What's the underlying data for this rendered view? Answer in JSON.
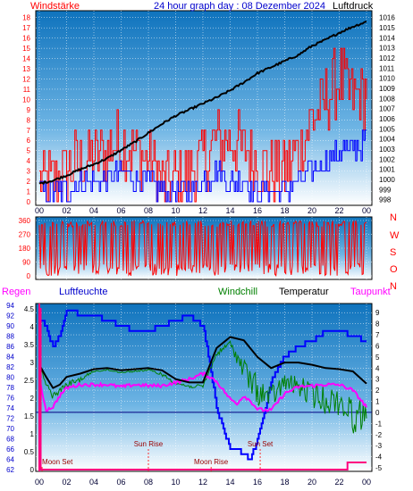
{
  "chart_data": [
    {
      "type": "line",
      "title": "24 hour graph day : 08 Dezember 2024",
      "left_label": "Windstärke",
      "right_label": "Luftdruck",
      "x_ticks": [
        "00",
        "02",
        "04",
        "06",
        "08",
        "10",
        "12",
        "14",
        "16",
        "18",
        "20",
        "22",
        "00"
      ],
      "y_left_ticks": [
        "0",
        "1",
        "2",
        "3",
        "4",
        "5",
        "6",
        "7",
        "8",
        "9",
        "10",
        "11",
        "12",
        "13",
        "14",
        "15",
        "16",
        "17",
        "18"
      ],
      "y_right_ticks": [
        "998",
        "999",
        "1000",
        "1001",
        "1002",
        "1003",
        "1004",
        "1005",
        "1006",
        "1007",
        "1008",
        "1009",
        "1010",
        "1011",
        "1012",
        "1013",
        "1014",
        "1015",
        "1016"
      ],
      "ylim_left": [
        0,
        18.5
      ],
      "ylim_right": [
        997.8,
        1016.5
      ],
      "series": [
        {
          "name": "Luftdruck",
          "color": "#000000",
          "axis": "right",
          "x": [
            0,
            1,
            2,
            3,
            4,
            5,
            6,
            7,
            8,
            9,
            10,
            11,
            12,
            13,
            14,
            15,
            16,
            17,
            18,
            19,
            20,
            21,
            22,
            23,
            24
          ],
          "values": [
            999.6,
            999.9,
            1000.4,
            1001.0,
            1001.5,
            1002.1,
            1002.9,
            1003.7,
            1004.6,
            1005.5,
            1006.3,
            1006.9,
            1007.5,
            1008.1,
            1008.8,
            1009.6,
            1010.5,
            1011.1,
            1011.7,
            1012.3,
            1013.2,
            1013.8,
            1014.5,
            1015.1,
            1015.6
          ]
        },
        {
          "name": "Windstärke Böen",
          "color": "#ff0000",
          "axis": "left",
          "x": [
            0,
            1,
            2,
            3,
            4,
            5,
            6,
            7,
            8,
            9,
            10,
            11,
            12,
            13,
            14,
            15,
            16,
            17,
            18,
            19,
            20,
            21,
            22,
            23,
            24
          ],
          "values": [
            2,
            2,
            3,
            4,
            4,
            5,
            6,
            5,
            4,
            2,
            2,
            3,
            4,
            6,
            6,
            5,
            4,
            3,
            3,
            5,
            8,
            10,
            12,
            10,
            11
          ]
        },
        {
          "name": "Windstärke Mittel",
          "color": "#0000ff",
          "axis": "left",
          "x": [
            0,
            1,
            2,
            3,
            4,
            5,
            6,
            7,
            8,
            9,
            10,
            11,
            12,
            13,
            14,
            15,
            16,
            17,
            18,
            19,
            20,
            21,
            22,
            23,
            24
          ],
          "values": [
            1,
            1,
            1,
            2,
            2,
            2,
            3,
            2,
            2,
            1,
            1,
            1,
            2,
            3,
            2,
            2,
            1,
            1,
            1,
            2,
            3,
            4,
            5,
            5,
            6
          ]
        }
      ]
    },
    {
      "type": "scatter",
      "left_ticks": [
        "0",
        "90",
        "180",
        "270",
        "360"
      ],
      "right_labels": [
        "N",
        "W",
        "S",
        "O",
        "N"
      ],
      "ylim": [
        0,
        360
      ],
      "series": [
        {
          "name": "Windrichtung",
          "color": "#ff0000"
        }
      ]
    },
    {
      "type": "line",
      "labels": {
        "regen": "Regen",
        "luftfeuchte": "Luftfeuchte",
        "windchill": "Windchill",
        "temperatur": "Temperatur",
        "taupunkt": "Taupunkt"
      },
      "y_hum_ticks": [
        "62",
        "64",
        "66",
        "68",
        "70",
        "72",
        "74",
        "76",
        "78",
        "80",
        "82",
        "84",
        "86",
        "88",
        "90",
        "92",
        "94"
      ],
      "y_rain_ticks": [
        "0",
        "0.5",
        "1",
        "1.5",
        "2",
        "2.5",
        "3",
        "3.5",
        "4",
        "4.5"
      ],
      "y_temp_ticks": [
        "-5",
        "-4",
        "-3",
        "-2",
        "-1",
        "0",
        "1",
        "2",
        "3",
        "4",
        "5",
        "6",
        "7",
        "8",
        "9"
      ],
      "ylim_temp": [
        -5,
        9.5
      ],
      "x_ticks": [
        "00",
        "02",
        "04",
        "06",
        "08",
        "10",
        "12",
        "14",
        "16",
        "18",
        "20",
        "22",
        "00"
      ],
      "annotations": [
        {
          "text": "Moon Set",
          "hour": 0.2
        },
        {
          "text": "Sun Rise",
          "hour": 8.0
        },
        {
          "text": "Moon Rise",
          "hour": 12.6
        },
        {
          "text": "Sun Set",
          "hour": 16.2
        }
      ],
      "reference_line": {
        "temp": 0
      },
      "series": [
        {
          "name": "Luftfeuchte",
          "color": "#0000ff",
          "axis": "humidity",
          "x": [
            0,
            0.3,
            1,
            1.5,
            2,
            2.5,
            3,
            4,
            5,
            6,
            7,
            8,
            9,
            10,
            11,
            11.5,
            12,
            12.5,
            13,
            13.5,
            14,
            14.5,
            15,
            15.5,
            16,
            16.5,
            17,
            18,
            19,
            20,
            21,
            22,
            23,
            24
          ],
          "values": [
            91,
            91,
            86,
            88,
            93,
            93,
            92,
            92,
            91,
            90,
            89,
            89,
            90,
            91,
            92,
            91,
            90,
            83,
            74,
            70,
            66,
            66,
            65,
            64,
            68,
            73,
            79,
            84,
            86,
            87,
            89,
            89,
            88,
            87
          ]
        },
        {
          "name": "Temperatur",
          "color": "#000000",
          "axis": "temp",
          "x": [
            0,
            0.5,
            1,
            1.5,
            2,
            3,
            4,
            5,
            6,
            7,
            8,
            9,
            10,
            11,
            12,
            13,
            14,
            15,
            16,
            17,
            18,
            19,
            20,
            21,
            22,
            23,
            24
          ],
          "values": [
            4.3,
            3.2,
            2.2,
            2.5,
            3.2,
            3.5,
            3.9,
            4.0,
            3.8,
            3.9,
            4.0,
            3.8,
            3.0,
            2.7,
            2.7,
            5.8,
            6.8,
            6.5,
            5.0,
            4.0,
            4.5,
            4.5,
            4.3,
            4.0,
            3.9,
            3.7,
            2.6
          ]
        },
        {
          "name": "Windchill",
          "color": "#008000",
          "axis": "temp",
          "x": [
            0,
            0.5,
            1,
            1.5,
            2,
            3,
            4,
            5,
            6,
            7,
            8,
            9,
            10,
            11,
            12,
            13,
            14,
            15,
            16,
            17,
            18,
            19,
            20,
            21,
            22,
            23,
            24
          ],
          "values": [
            4.3,
            2.8,
            1.8,
            2.2,
            2.8,
            3.2,
            3.8,
            3.9,
            3.7,
            3.8,
            3.9,
            3.6,
            2.8,
            2.5,
            2.5,
            5.5,
            6.5,
            5.0,
            3.3,
            2.5,
            3.5,
            3.3,
            2.8,
            2.4,
            2.3,
            1.5,
            1.0
          ]
        },
        {
          "name": "Taupunkt",
          "color": "#ff00ff",
          "axis": "temp",
          "x": [
            0,
            0.5,
            1,
            1.5,
            2,
            3,
            4,
            5,
            6,
            7,
            8,
            9,
            10,
            11,
            12,
            12.5,
            13,
            13.5,
            14,
            14.5,
            15,
            15.5,
            16,
            16.5,
            17,
            18,
            19,
            20,
            21,
            22,
            23,
            24
          ],
          "values": [
            3.0,
            0.2,
            0.5,
            1.5,
            2.2,
            2.5,
            2.5,
            2.5,
            2.3,
            2.5,
            2.4,
            2.4,
            2.7,
            3.0,
            3.5,
            3.2,
            2.8,
            2.0,
            1.2,
            0.8,
            1.5,
            1.0,
            0.3,
            0.2,
            0.2,
            1.7,
            2.3,
            2.4,
            2.5,
            2.5,
            2.0,
            0.5
          ]
        },
        {
          "name": "Regen",
          "color": "#ff007f",
          "axis": "rain",
          "x": [
            0,
            0.05,
            0.1,
            22.5,
            22.6,
            24
          ],
          "values": [
            4.5,
            4.5,
            0,
            0,
            0.2,
            0.2
          ]
        }
      ]
    }
  ]
}
